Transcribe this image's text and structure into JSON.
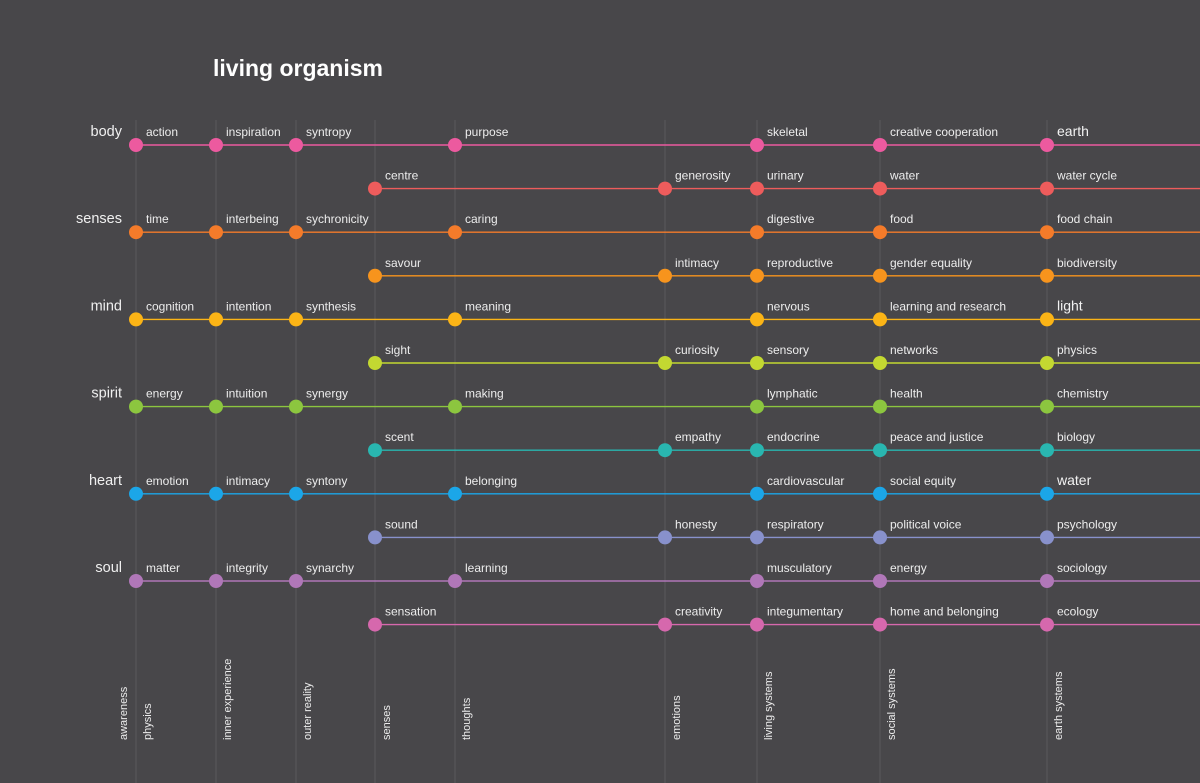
{
  "title": "living organism",
  "columns": [
    {
      "id": "physics",
      "label": "physics"
    },
    {
      "id": "inner_experience",
      "label": "inner experience"
    },
    {
      "id": "outer_reality",
      "label": "outer reality"
    },
    {
      "id": "senses",
      "label": "senses"
    },
    {
      "id": "thoughts",
      "label": "thoughts"
    },
    {
      "id": "emotions",
      "label": "emotions"
    },
    {
      "id": "living_systems",
      "label": "living systems"
    },
    {
      "id": "social_systems",
      "label": "social systems"
    },
    {
      "id": "earth_systems",
      "label": "earth systems"
    }
  ],
  "awareness_label": "awareness",
  "rows": [
    {
      "label": "body",
      "color": "#ec5a9f",
      "nodes": [
        "action",
        "inspiration",
        "syntropy",
        null,
        "purpose",
        null,
        "skeletal",
        "creative cooperation",
        "earth"
      ],
      "last_big": true
    },
    {
      "label": "",
      "color": "#ee5c5c",
      "nodes": [
        null,
        null,
        null,
        "centre",
        null,
        "generosity",
        "urinary",
        "water",
        "water cycle"
      ]
    },
    {
      "label": "senses",
      "color": "#f47b2a",
      "nodes": [
        "time",
        "interbeing",
        "sychronicity",
        null,
        "caring",
        null,
        "digestive",
        "food",
        "food chain"
      ]
    },
    {
      "label": "",
      "color": "#f7941d",
      "nodes": [
        null,
        null,
        null,
        "savour",
        null,
        "intimacy",
        "reproductive",
        "gender equality",
        "biodiversity"
      ]
    },
    {
      "label": "mind",
      "color": "#fbb416",
      "nodes": [
        "cognition",
        "intention",
        "synthesis",
        null,
        "meaning",
        null,
        "nervous",
        "learning and research",
        "light"
      ],
      "last_big": true
    },
    {
      "label": "",
      "color": "#c3d831",
      "nodes": [
        null,
        null,
        null,
        "sight",
        null,
        "curiosity",
        "sensory",
        "networks",
        "physics"
      ]
    },
    {
      "label": "spirit",
      "color": "#8cc63f",
      "nodes": [
        "energy",
        "intuition",
        "synergy",
        null,
        "making",
        null,
        "lymphatic",
        "health",
        "chemistry"
      ]
    },
    {
      "label": "",
      "color": "#29b6b0",
      "nodes": [
        null,
        null,
        null,
        "scent",
        null,
        "empathy",
        "endocrine",
        "peace and justice",
        "biology"
      ]
    },
    {
      "label": "heart",
      "color": "#1ba6e8",
      "nodes": [
        "emotion",
        "intimacy",
        "syntony",
        null,
        "belonging",
        null,
        "cardiovascular",
        "social equity",
        "water"
      ],
      "last_big": true
    },
    {
      "label": "",
      "color": "#8891cc",
      "nodes": [
        null,
        null,
        null,
        "sound",
        null,
        "honesty",
        "respiratory",
        "political voice",
        "psychology"
      ]
    },
    {
      "label": "soul",
      "color": "#b077b8",
      "nodes": [
        "matter",
        "integrity",
        "synarchy",
        null,
        "learning",
        null,
        "musculatory",
        "energy",
        "sociology"
      ]
    },
    {
      "label": "",
      "color": "#d668ad",
      "nodes": [
        null,
        null,
        null,
        "sensation",
        null,
        "creativity",
        "integumentary",
        "home and belonging",
        "ecology"
      ]
    }
  ]
}
